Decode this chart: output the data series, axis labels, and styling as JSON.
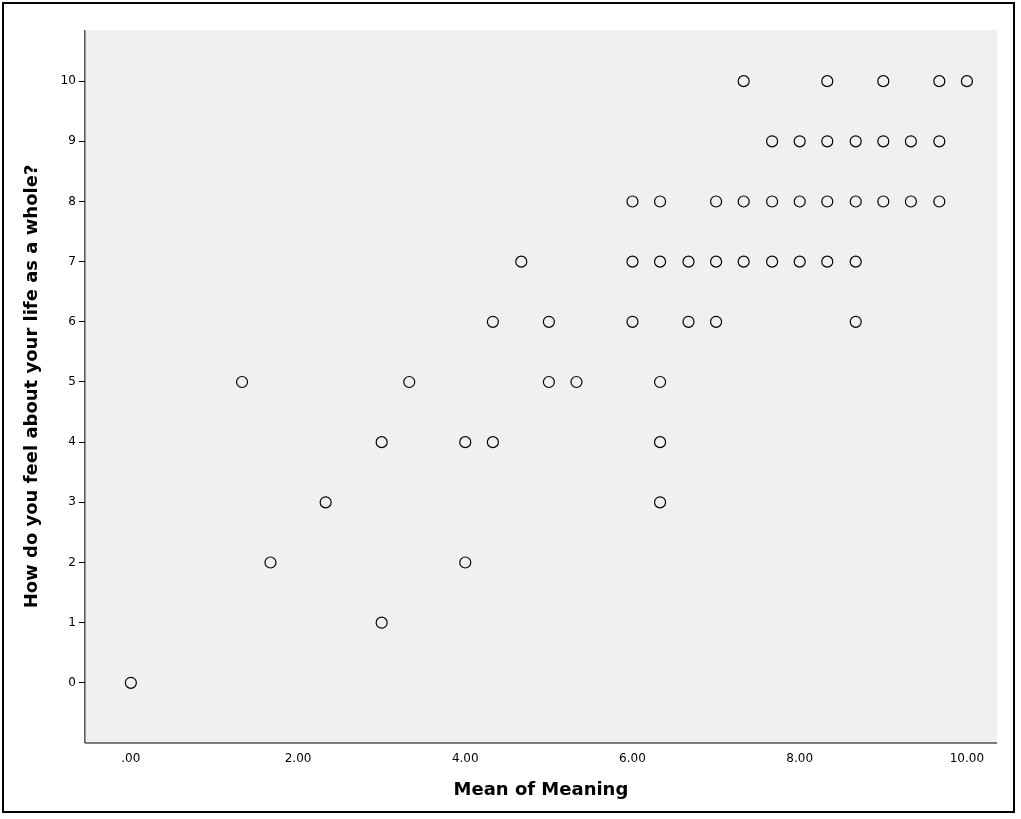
{
  "chart_data": {
    "type": "scatter",
    "xlabel": "Mean of Meaning",
    "ylabel": "How do you feel about your life as a whole?",
    "series": [
      {
        "color": "#000000",
        "x": [
          7.33,
          8.33,
          9.0,
          9.67,
          10.0,
          7.67,
          8.0,
          8.33,
          8.67,
          9.0,
          9.33,
          9.67,
          6.0,
          6.33,
          7.0,
          7.33,
          7.67,
          8.0,
          8.33,
          8.67,
          9.0,
          9.33,
          9.67,
          4.67,
          6.0,
          6.33,
          6.67,
          7.0,
          7.33,
          7.67,
          8.0,
          8.33,
          8.67,
          4.33,
          5.0,
          6.0,
          6.67,
          7.0,
          8.67,
          1.33,
          3.33,
          5.0,
          5.33,
          6.33,
          3.0,
          4.0,
          4.33,
          6.33,
          2.33,
          6.33,
          1.67,
          4.0,
          3.0,
          0.0
        ],
        "values": [
          10,
          10,
          10,
          10,
          10,
          9,
          9,
          9,
          9,
          9,
          9,
          9,
          8,
          8,
          8,
          8,
          8,
          8,
          8,
          8,
          8,
          8,
          8,
          7,
          7,
          7,
          7,
          7,
          7,
          7,
          7,
          7,
          7,
          6,
          6,
          6,
          6,
          6,
          6,
          5,
          5,
          5,
          5,
          5,
          4,
          4,
          4,
          4,
          3,
          3,
          2,
          2,
          1,
          0
        ]
      }
    ],
    "xlim": [
      -0.55,
      10.36
    ],
    "ylim": [
      -1.0,
      10.85
    ],
    "xticks": [
      {
        "value": 0,
        "label": ".00"
      },
      {
        "value": 2,
        "label": "2.00"
      },
      {
        "value": 4,
        "label": "4.00"
      },
      {
        "value": 6,
        "label": "6.00"
      },
      {
        "value": 8,
        "label": "8.00"
      },
      {
        "value": 10,
        "label": "10.00"
      }
    ],
    "yticks": [
      0,
      1,
      2,
      3,
      4,
      5,
      6,
      7,
      8,
      9,
      10
    ],
    "grid": false,
    "legend": false,
    "marker": "circle"
  }
}
